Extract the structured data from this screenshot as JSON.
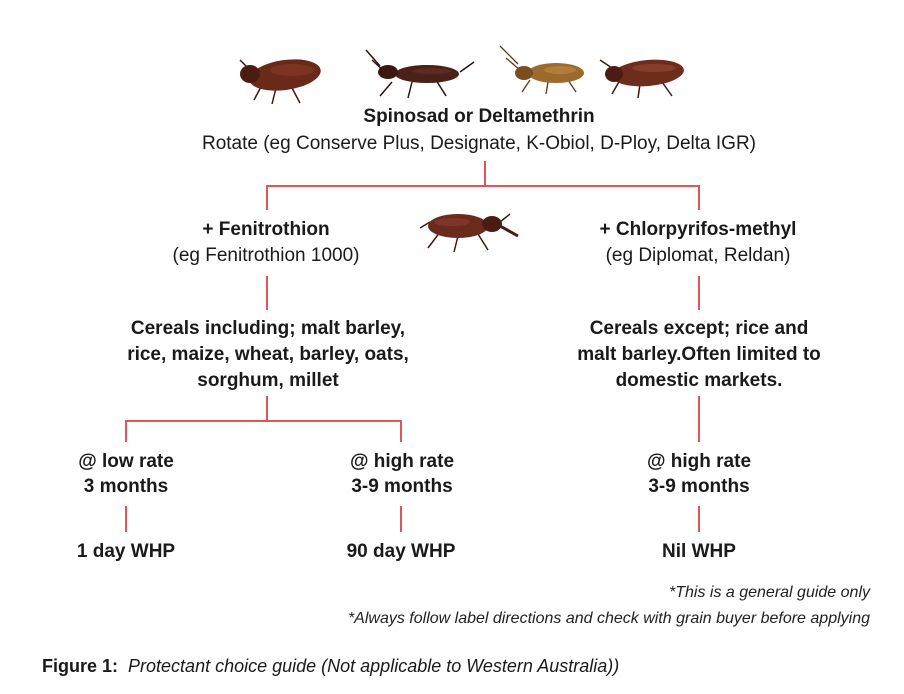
{
  "top": {
    "title": "Spinosad or Deltamethrin",
    "subtitle": "Rotate (eg Conserve Plus, Designate, K-Obiol, D-Ploy, Delta IGR)"
  },
  "left_branch": {
    "title": "+ Fenitrothion",
    "subtitle": "(eg Fenitrothion 1000)",
    "cereals": [
      "Cereals including; malt barley,",
      "rice, maize, wheat, barley, oats,",
      "sorghum, millet"
    ],
    "low": {
      "rate": "@ low rate",
      "duration": "3 months",
      "whp": "1 day WHP"
    },
    "high": {
      "rate": "@ high rate",
      "duration": "3-9 months",
      "whp": "90 day WHP"
    }
  },
  "right_branch": {
    "title": "+ Chlorpyrifos-methyl",
    "subtitle": "(eg Diplomat, Reldan)",
    "cereals": [
      "Cereals except; rice and",
      "malt barley.Often limited to",
      "domestic markets."
    ],
    "high": {
      "rate": "@ high rate",
      "duration": "3-9 months",
      "whp": "Nil WHP"
    }
  },
  "notes": [
    "*This is a general guide only",
    "*Always follow label directions and check with grain buyer before applying"
  ],
  "caption": {
    "label": "Figure 1:",
    "text": "Protectant choice guide (Not applicable to Western Australia))"
  },
  "colors": {
    "connector": "#e0555a",
    "beetle_dark": "#5a2418",
    "beetle_mid": "#7a3322",
    "beetle_light": "#9c6a2c"
  }
}
